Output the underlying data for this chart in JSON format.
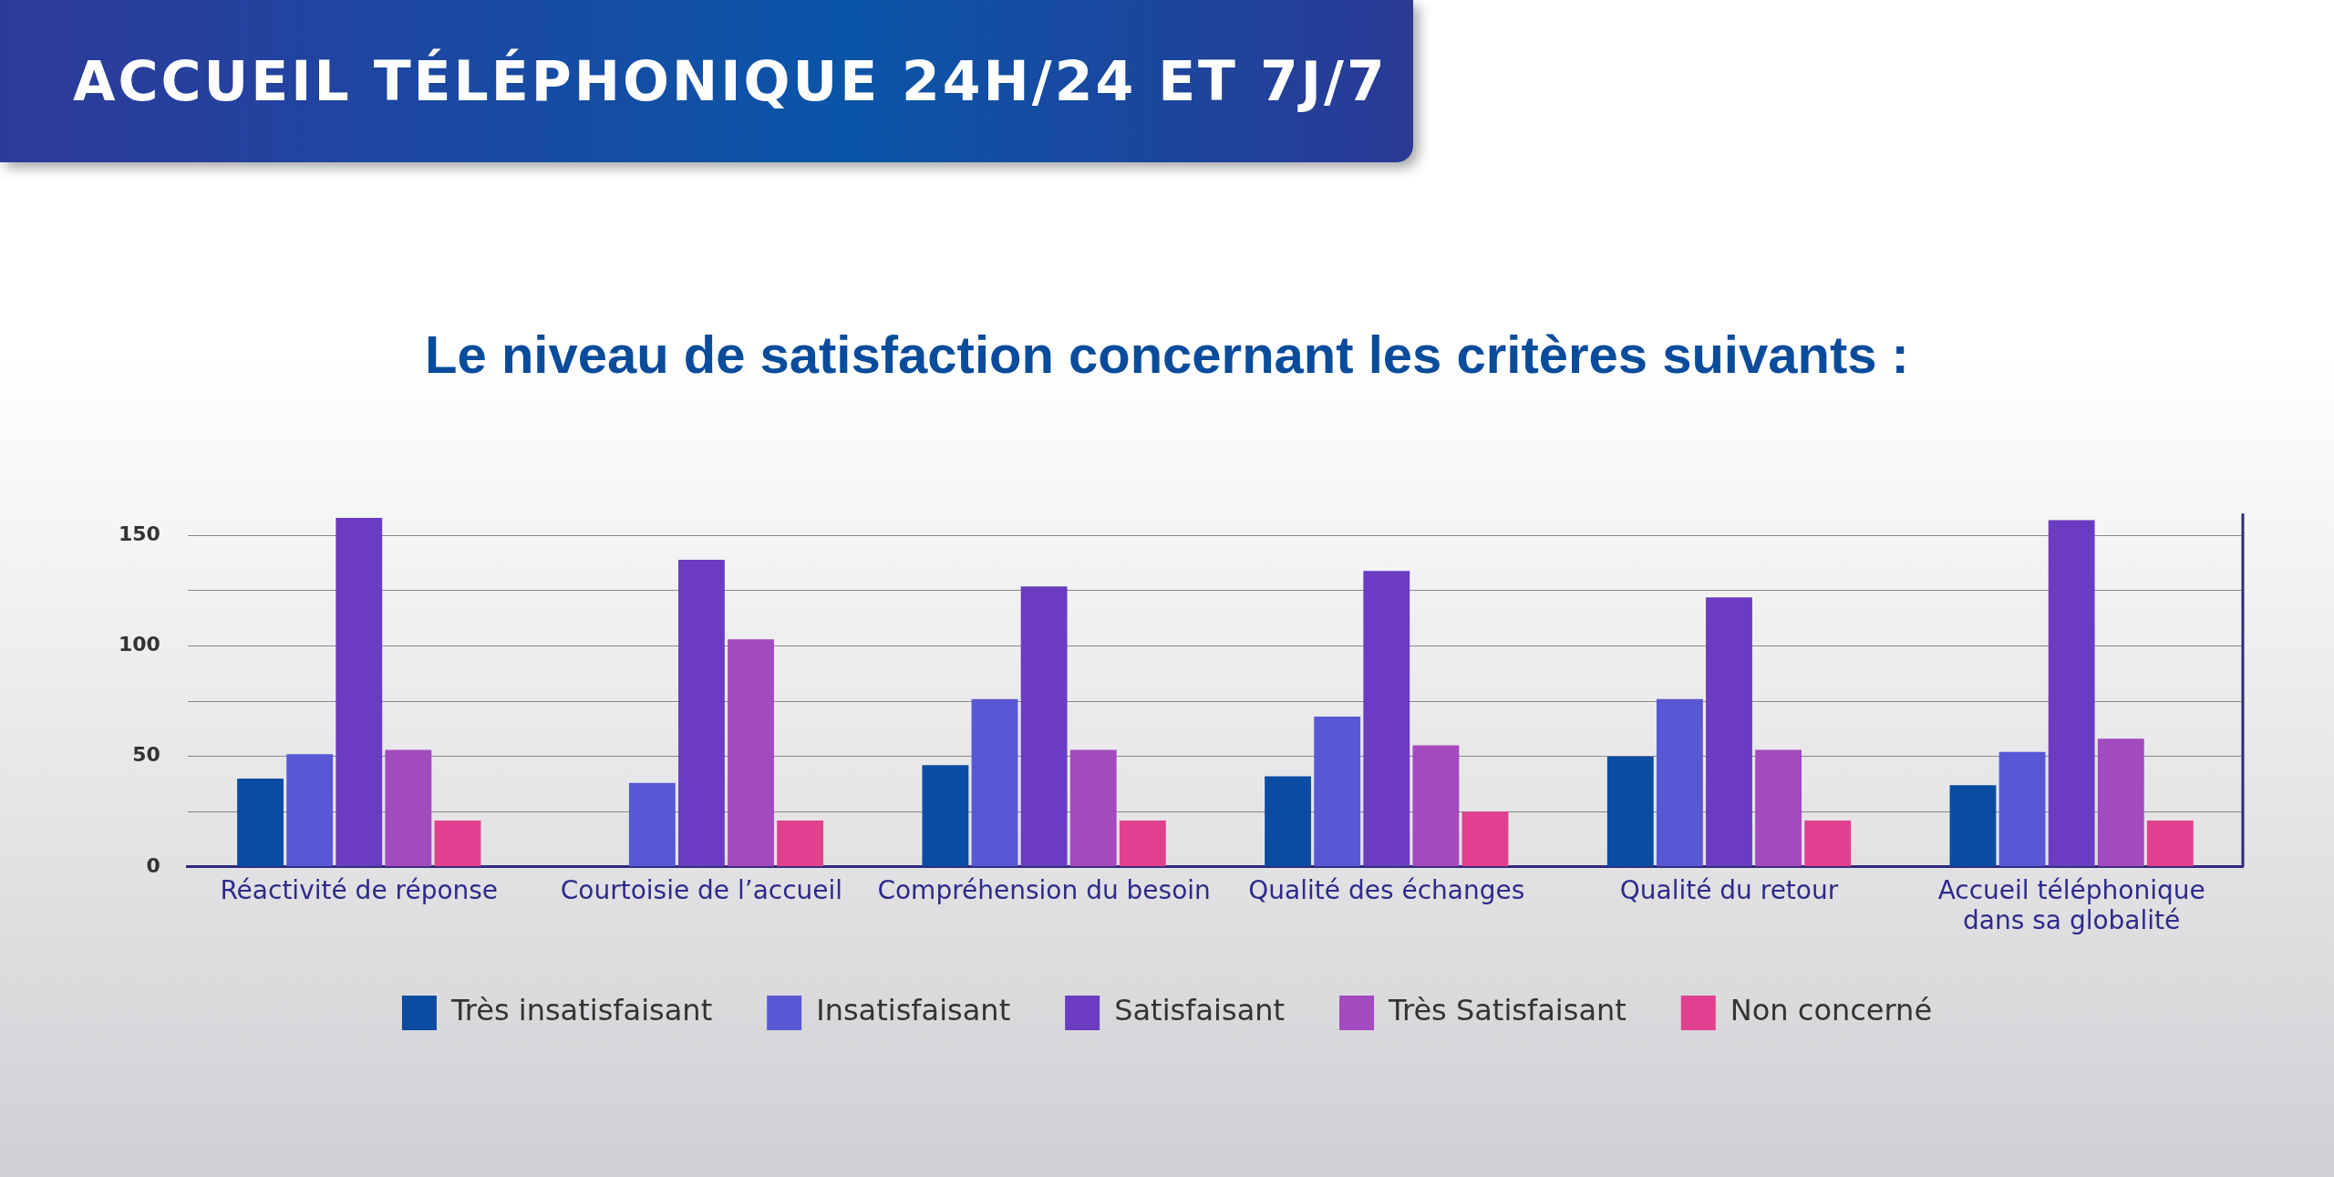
{
  "chart_data": {
    "type": "bar",
    "title": "ACCUEIL TÉLÉPHONIQUE 24H/24 ET 7J/7",
    "subtitle": "Le niveau de satisfaction concernant les critères suivants :",
    "categories": [
      "Réactivité de réponse",
      "Courtoisie de l’accueil",
      "Compréhension du besoin",
      "Qualité des échanges",
      "Qualité du retour",
      "Accueil téléphonique dans sa globalité"
    ],
    "series": [
      {
        "name": "Très insatisfaisant",
        "color": "#0a4ca2",
        "values": [
          40,
          null,
          46,
          41,
          50,
          37
        ]
      },
      {
        "name": "Insatisfaisant",
        "color": "#5858d4",
        "values": [
          51,
          38,
          76,
          68,
          76,
          52
        ]
      },
      {
        "name": "Satisfaisant",
        "color": "#6a3cc2",
        "values": [
          158,
          139,
          127,
          134,
          122,
          157
        ]
      },
      {
        "name": "Très Satisfaisant",
        "color": "#a24abe",
        "values": [
          53,
          103,
          53,
          55,
          53,
          58
        ]
      },
      {
        "name": "Non concerné",
        "color": "#e0408e",
        "values": [
          21,
          21,
          21,
          25,
          21,
          21
        ]
      }
    ],
    "ylim": [
      0,
      160
    ],
    "yticks": [
      0,
      {
        "value": 25,
        "label": null
      },
      50,
      {
        "value": 75,
        "label": null
      },
      100,
      {
        "value": 125,
        "label": null
      },
      150
    ],
    "grid": "y",
    "legend": "bottom"
  }
}
